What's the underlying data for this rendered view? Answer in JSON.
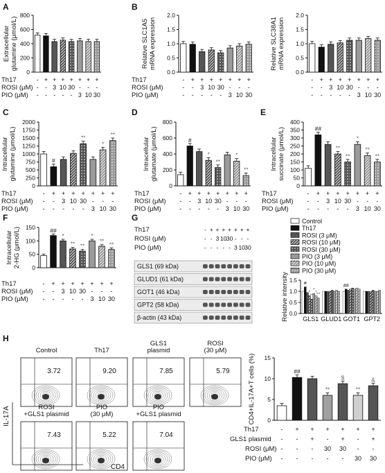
{
  "figure": {
    "panel_labels": [
      "A",
      "B",
      "C",
      "D",
      "E",
      "F",
      "G",
      "H"
    ],
    "treatment_rows": {
      "th17_label": "Th17",
      "rosi_label": "ROSI (μM)",
      "pio_label": "PIO (μM)",
      "th17_signs": [
        "-",
        "+",
        "+",
        "+",
        "+",
        "+",
        "+",
        "+"
      ],
      "rosi_signs": [
        "-",
        "-",
        "3",
        "10",
        "30",
        "-",
        "-",
        "-"
      ],
      "pio_signs": [
        "-",
        "-",
        "-",
        "-",
        "-",
        "3",
        "10",
        "30"
      ]
    },
    "panel_H_rows": {
      "th17_label": "Th17",
      "gls1_label": "GLS1 plasmid",
      "rosi_label": "ROSI (μM)",
      "pio_label": "PIO (μM)",
      "th17_signs": [
        "-",
        "+",
        "+",
        "+",
        "+",
        "+",
        "+"
      ],
      "gls1_signs": [
        "-",
        "-",
        "+",
        "-",
        "+",
        "-",
        "+"
      ],
      "rosi_signs": [
        "-",
        "-",
        "-",
        "30",
        "30",
        "-",
        "-"
      ],
      "pio_signs": [
        "-",
        "-",
        "-",
        "-",
        "-",
        "30",
        "30"
      ]
    },
    "blot": {
      "header_labels": [
        "Th17",
        "ROSI (μM)",
        "PIO (μM)"
      ],
      "lane_signs": {
        "th17": [
          "-",
          "+",
          "+",
          "+",
          "+",
          "+",
          "+",
          "+"
        ],
        "rosi": [
          "-",
          "-",
          "3",
          "10",
          "30",
          "-",
          "-",
          "-"
        ],
        "pio": [
          "-",
          "-",
          "-",
          "-",
          "-",
          "3",
          "10",
          "30"
        ]
      },
      "bands": [
        "GLS1 (69 kDa)",
        "GLUD1 (61 kDa)",
        "GOT1 (46 kDa)",
        "GPT2 (58 kDa)",
        "β-actin (43 kDa)"
      ]
    },
    "legend_G": [
      "Control",
      "Th17",
      "ROSI (3 μM)",
      "ROSI (10 μM)",
      "ROSI (30 μM)",
      "PIO (3 μM)",
      "PIO (10 μM)",
      "PIO (30 μM)"
    ],
    "flow": {
      "titles": [
        "Control",
        "Th17",
        "GLS1 plasmid",
        "ROSI (30 μM)",
        "ROSI +GLS1 plasmid",
        "PIO (30 μM)",
        "PIO +GLS1 plasmid"
      ],
      "values": [
        "3.72",
        "9.20",
        "7.85",
        "5.79",
        "7.43",
        "5.22",
        "7.04"
      ],
      "xlabel": "CD4",
      "ylabel": "IL-17A"
    },
    "colors": {
      "control": "#ffffff",
      "th17": "#111111",
      "rosi": "#555555",
      "pio": "#9a9a9a",
      "sig": "#444444"
    }
  },
  "chart_data": [
    {
      "panel": "A",
      "type": "bar",
      "ylabel": "Extracellular glutamine (μmol/L)",
      "ylim": [
        0,
        800
      ],
      "yticks": [
        "0",
        "200",
        "400",
        "600",
        "800"
      ],
      "values": [
        520,
        510,
        430,
        450,
        430,
        440,
        430,
        430
      ],
      "marks": [
        "",
        "",
        "",
        "",
        "",
        "",
        "",
        ""
      ]
    },
    {
      "panel": "B1",
      "type": "bar",
      "ylabel": "Relative SLC1A5 mRNA expression",
      "ylim": [
        0,
        2.0
      ],
      "yticks": [
        "0.0",
        "0.5",
        "1.0",
        "1.5",
        "2.0"
      ],
      "values": [
        1.0,
        0.98,
        0.72,
        0.78,
        0.68,
        0.85,
        0.92,
        0.98
      ],
      "marks": [
        "",
        "",
        "",
        "",
        "",
        "",
        "",
        ""
      ]
    },
    {
      "panel": "B2",
      "type": "bar",
      "ylabel": "Relative SLC38A1 mRNA expression",
      "ylim": [
        0,
        2.0
      ],
      "yticks": [
        "0.0",
        "0.5",
        "1.0",
        "1.5",
        "2.0"
      ],
      "values": [
        1.0,
        0.88,
        0.98,
        1.03,
        1.12,
        1.12,
        1.18,
        1.12
      ],
      "marks": [
        "",
        "",
        "",
        "",
        "",
        "",
        "",
        ""
      ]
    },
    {
      "panel": "C",
      "type": "bar",
      "ylabel": "Intracellular glutamine (μmol/L)",
      "ylim": [
        0,
        2000
      ],
      "yticks": [
        "0",
        "250",
        "500",
        "750",
        "1000",
        "1250",
        "1500",
        "1750",
        "2000"
      ],
      "values": [
        1000,
        600,
        830,
        1020,
        1320,
        830,
        1130,
        1420
      ],
      "marks": [
        "",
        "#",
        "",
        "",
        "**",
        "",
        "*",
        "**"
      ]
    },
    {
      "panel": "D",
      "type": "bar",
      "ylabel": "Intracellular glutamate (μmol/L)",
      "ylim": [
        0,
        800
      ],
      "yticks": [
        "0",
        "200",
        "400",
        "600",
        "800"
      ],
      "values": [
        140,
        500,
        430,
        320,
        230,
        390,
        310,
        130
      ],
      "marks": [
        "",
        "#",
        "",
        "*",
        "**",
        "",
        "*",
        "**"
      ]
    },
    {
      "panel": "E",
      "type": "bar",
      "ylabel": "Intracellular succinate (μmol/L)",
      "ylim": [
        0,
        400
      ],
      "yticks": [
        "0",
        "50",
        "100",
        "150",
        "200",
        "250",
        "300",
        "350",
        "400"
      ],
      "values": [
        110,
        320,
        260,
        200,
        150,
        260,
        190,
        150
      ],
      "marks": [
        "",
        "##",
        "",
        "**",
        "**",
        "*",
        "**",
        "**"
      ]
    },
    {
      "panel": "F",
      "type": "bar",
      "ylabel": "Intracellular 2-HG (μmol/L)",
      "ylim": [
        0,
        150
      ],
      "yticks": [
        "0",
        "50",
        "100",
        "150"
      ],
      "values": [
        45,
        120,
        100,
        70,
        62,
        100,
        80,
        68
      ],
      "marks": [
        "",
        "##",
        "*",
        "**",
        "**",
        "*",
        "**",
        "**"
      ]
    },
    {
      "panel": "G",
      "type": "bar",
      "ylabel": "Relative intensity",
      "ylim": [
        0,
        1.5
      ],
      "yticks": [
        "0.0",
        "0.5",
        "1.0",
        "1.5"
      ],
      "categories": [
        "GLS1",
        "GLUD1",
        "GOT1",
        "GPT2"
      ],
      "series": [
        {
          "name": "Control",
          "values": [
            1.0,
            1.0,
            1.0,
            1.0
          ]
        },
        {
          "name": "Th17",
          "values": [
            1.2,
            1.0,
            1.1,
            1.0
          ]
        },
        {
          "name": "ROSI (3 μM)",
          "values": [
            0.95,
            1.0,
            1.05,
            1.0
          ]
        },
        {
          "name": "ROSI (10 μM)",
          "values": [
            0.8,
            1.0,
            1.1,
            1.0
          ]
        },
        {
          "name": "ROSI (30 μM)",
          "values": [
            0.65,
            1.05,
            1.15,
            1.05
          ]
        },
        {
          "name": "PIO (3 μM)",
          "values": [
            0.9,
            1.0,
            1.1,
            1.0
          ]
        },
        {
          "name": "PIO (10 μM)",
          "values": [
            0.8,
            1.05,
            1.15,
            1.0
          ]
        },
        {
          "name": "PIO (30 μM)",
          "values": [
            0.7,
            1.0,
            1.1,
            1.05
          ]
        }
      ],
      "marks": [
        [
          "",
          "#",
          "",
          "*",
          "**",
          "*",
          "*",
          "**"
        ],
        [
          "",
          "",
          "",
          "",
          "",
          "",
          "",
          ""
        ],
        [
          "",
          "##",
          "",
          "",
          "",
          "",
          "",
          ""
        ],
        [
          "",
          "",
          "",
          "",
          "",
          "",
          "",
          ""
        ]
      ]
    },
    {
      "panel": "H",
      "type": "bar",
      "ylabel": "CD4+IL-17A+T cells (%)",
      "ylim": [
        0,
        15
      ],
      "yticks": [
        "0",
        "5",
        "10",
        "15"
      ],
      "values": [
        3.5,
        10.3,
        10.0,
        6.0,
        8.8,
        6.0,
        8.3
      ],
      "fills": [
        "#ffffff",
        "#111111",
        "#555555",
        "#a0a0a0",
        "#555555",
        "#d0d0d0",
        "#555555"
      ],
      "marks": [
        "",
        "##",
        "",
        "**",
        "$",
        "**",
        "&"
      ]
    }
  ]
}
